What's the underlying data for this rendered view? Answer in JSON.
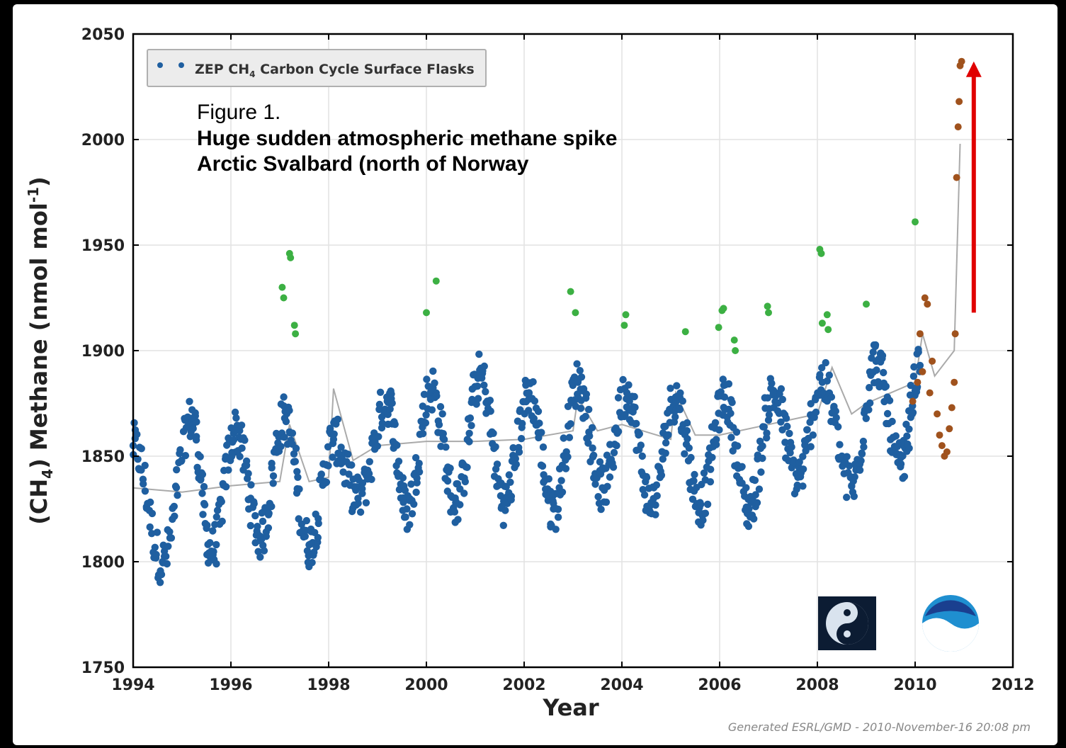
{
  "chart_data": {
    "type": "scatter",
    "xlabel": "Year",
    "ylabel": "(CH4) Methane (nmol mol-1)",
    "ylabel_parts": [
      "(CH",
      "4",
      ") Methane (nmol mol",
      "-1",
      ")"
    ],
    "xlim": [
      1994,
      2012
    ],
    "ylim": [
      1750,
      2050
    ],
    "xticks": [
      "1994",
      "1996",
      "1998",
      "2000",
      "2002",
      "2004",
      "2006",
      "2008",
      "2010",
      "2012"
    ],
    "yticks": [
      "1750",
      "1800",
      "1850",
      "1900",
      "1950",
      "2000",
      "2050"
    ],
    "grid": true,
    "legend": {
      "placement": "top-left",
      "label_parts": [
        "ZEP CH",
        "4",
        " Carbon Cycle Surface Flasks"
      ]
    },
    "annotation": {
      "lines": [
        "Figure 1.",
        "Huge sudden atmospheric methane spike",
        "Arctic Svalbard (north of Norway"
      ]
    },
    "credit": "Generated ESRL/GMD - 2010-November-16 20:08 pm",
    "colors": {
      "flask": "#1f5fa0",
      "outlier": "#3cb043",
      "recent": "#a0521d",
      "trend": "#aaaaaa",
      "arrow": "#e00000"
    },
    "arrow": {
      "x": 2011.2,
      "y_from": 1918,
      "y_to": 2037
    },
    "series": [
      {
        "name": "ZEP CH4 Carbon Cycle Surface Flasks",
        "color": "#1f5fa0",
        "seasonal_peaks": [
          [
            1994.0,
            1855
          ],
          [
            1995.2,
            1868
          ],
          [
            1996.1,
            1862
          ],
          [
            1997.1,
            1868
          ],
          [
            1998.1,
            1858
          ],
          [
            1999.2,
            1876
          ],
          [
            2000.1,
            1882
          ],
          [
            2001.1,
            1888
          ],
          [
            2002.1,
            1880
          ],
          [
            2003.1,
            1885
          ],
          [
            2004.1,
            1880
          ],
          [
            2005.1,
            1878
          ],
          [
            2006.1,
            1878
          ],
          [
            2007.1,
            1880
          ],
          [
            2008.1,
            1885
          ],
          [
            2009.2,
            1895
          ],
          [
            2010.1,
            1893
          ]
        ],
        "seasonal_minima": [
          [
            1994.6,
            1800
          ],
          [
            1995.6,
            1805
          ],
          [
            1996.6,
            1812
          ],
          [
            1997.6,
            1808
          ],
          [
            1998.6,
            1830
          ],
          [
            1999.6,
            1825
          ],
          [
            2000.6,
            1828
          ],
          [
            2001.6,
            1828
          ],
          [
            2002.6,
            1825
          ],
          [
            2003.6,
            1835
          ],
          [
            2004.6,
            1828
          ],
          [
            2005.6,
            1828
          ],
          [
            2006.6,
            1825
          ],
          [
            2007.6,
            1840
          ],
          [
            2008.7,
            1836
          ],
          [
            2009.7,
            1845
          ]
        ]
      },
      {
        "name": "",
        "color": "#3cb043",
        "points": [
          [
            1997.05,
            1930
          ],
          [
            1997.08,
            1925
          ],
          [
            1997.2,
            1946
          ],
          [
            1997.22,
            1944
          ],
          [
            1997.3,
            1912
          ],
          [
            1997.32,
            1908
          ],
          [
            2000.0,
            1918
          ],
          [
            2000.2,
            1933
          ],
          [
            2002.95,
            1928
          ],
          [
            2003.05,
            1918
          ],
          [
            2004.05,
            1912
          ],
          [
            2004.08,
            1917
          ],
          [
            2005.3,
            1909
          ],
          [
            2005.98,
            1911
          ],
          [
            2006.05,
            1919
          ],
          [
            2006.08,
            1920
          ],
          [
            2006.3,
            1905
          ],
          [
            2006.32,
            1900
          ],
          [
            2006.98,
            1921
          ],
          [
            2007.0,
            1918
          ],
          [
            2008.05,
            1948
          ],
          [
            2008.08,
            1946
          ],
          [
            2008.1,
            1913
          ],
          [
            2008.2,
            1917
          ],
          [
            2008.22,
            1910
          ],
          [
            2009.0,
            1922
          ],
          [
            2010.0,
            1961
          ]
        ]
      },
      {
        "name": "",
        "color": "#a0521d",
        "points": [
          [
            2009.95,
            1876
          ],
          [
            2010.05,
            1885
          ],
          [
            2010.1,
            1908
          ],
          [
            2010.15,
            1890
          ],
          [
            2010.2,
            1925
          ],
          [
            2010.25,
            1922
          ],
          [
            2010.3,
            1880
          ],
          [
            2010.35,
            1895
          ],
          [
            2010.45,
            1870
          ],
          [
            2010.5,
            1860
          ],
          [
            2010.55,
            1855
          ],
          [
            2010.6,
            1850
          ],
          [
            2010.65,
            1852
          ],
          [
            2010.7,
            1863
          ],
          [
            2010.75,
            1873
          ],
          [
            2010.8,
            1885
          ],
          [
            2010.82,
            1908
          ],
          [
            2010.85,
            1982
          ],
          [
            2010.88,
            2006
          ],
          [
            2010.9,
            2018
          ],
          [
            2010.92,
            2035
          ],
          [
            2010.95,
            2037
          ]
        ]
      }
    ],
    "trend": [
      [
        1994.0,
        1835
      ],
      [
        1995.0,
        1833
      ],
      [
        1996.0,
        1836
      ],
      [
        1997.0,
        1838
      ],
      [
        1997.2,
        1865
      ],
      [
        1997.6,
        1838
      ],
      [
        1998.0,
        1840
      ],
      [
        1998.1,
        1882
      ],
      [
        1998.5,
        1848
      ],
      [
        1999.0,
        1855
      ],
      [
        2000.0,
        1857
      ],
      [
        2001.0,
        1857
      ],
      [
        2002.0,
        1858
      ],
      [
        2003.0,
        1862
      ],
      [
        2003.1,
        1878
      ],
      [
        2003.5,
        1862
      ],
      [
        2004.0,
        1865
      ],
      [
        2005.0,
        1858
      ],
      [
        2005.1,
        1880
      ],
      [
        2005.5,
        1860
      ],
      [
        2006.0,
        1860
      ],
      [
        2007.0,
        1865
      ],
      [
        2008.0,
        1870
      ],
      [
        2008.3,
        1892
      ],
      [
        2008.7,
        1870
      ],
      [
        2009.0,
        1875
      ],
      [
        2010.0,
        1885
      ],
      [
        2010.15,
        1908
      ],
      [
        2010.4,
        1888
      ],
      [
        2010.8,
        1900
      ],
      [
        2010.92,
        1998
      ]
    ]
  },
  "logos": [
    {
      "icon": "esrl-globe-logo"
    },
    {
      "icon": "noaa-logo"
    }
  ]
}
